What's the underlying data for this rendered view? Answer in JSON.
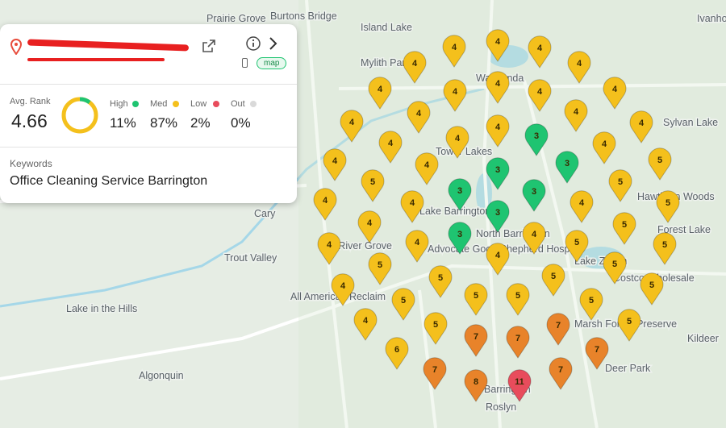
{
  "header": {
    "badge": "map"
  },
  "summary": {
    "avg_rank_label": "Avg. Rank",
    "avg_rank": 4.66,
    "stats": [
      {
        "label": "High",
        "value": "11%",
        "color": "#1fc471"
      },
      {
        "label": "Med",
        "value": "87%",
        "color": "#f4c01c"
      },
      {
        "label": "Low",
        "value": "2%",
        "color": "#e84c5c"
      },
      {
        "label": "Out",
        "value": "0%",
        "color": "#d9d9d9"
      }
    ]
  },
  "keywords": {
    "label": "Keywords",
    "text": "Office Cleaning Service Barrington"
  },
  "places": [
    "Prairie Grove",
    "Burtons Bridge",
    "Island Lake",
    "Mylith Park",
    "Wauconda",
    "Sylvan Lake",
    "Tower Lakes",
    "Cary",
    "Lake Barrington",
    "North Barrington",
    "Hawthorn Woods",
    "Forest Lake",
    "Fox River Grove",
    "Trout Valley",
    "Lake Zurich",
    "All American Reclaim",
    "Lake in the Hills",
    "Algonquin",
    "Roslyn",
    "Barrington",
    "Deer Park",
    "Kildeer",
    "Advocate Good Shepherd Hospital",
    "Costco Wholesale",
    "Ivanhoe",
    "Marsh Forest Preserve"
  ],
  "pins": [
    {
      "rank": 4,
      "color": "#f4c01c"
    },
    {
      "rank": 4,
      "color": "#f4c01c"
    },
    {
      "rank": 4,
      "color": "#f4c01c"
    },
    {
      "rank": 4,
      "color": "#f4c01c"
    },
    {
      "rank": 4,
      "color": "#f4c01c"
    },
    {
      "rank": 4,
      "color": "#f4c01c"
    },
    {
      "rank": 4,
      "color": "#f4c01c"
    },
    {
      "rank": 4,
      "color": "#f4c01c"
    },
    {
      "rank": 4,
      "color": "#f4c01c"
    },
    {
      "rank": 4,
      "color": "#f4c01c"
    },
    {
      "rank": 4,
      "color": "#f4c01c"
    },
    {
      "rank": 4,
      "color": "#f4c01c"
    },
    {
      "rank": 4,
      "color": "#f4c01c"
    },
    {
      "rank": 4,
      "color": "#f4c01c"
    },
    {
      "rank": 4,
      "color": "#f4c01c"
    },
    {
      "rank": 3,
      "color": "#1fc471"
    },
    {
      "rank": 4,
      "color": "#f4c01c"
    },
    {
      "rank": 4,
      "color": "#f4c01c"
    },
    {
      "rank": 4,
      "color": "#f4c01c"
    },
    {
      "rank": 4,
      "color": "#f4c01c"
    },
    {
      "rank": 3,
      "color": "#1fc471"
    },
    {
      "rank": 3,
      "color": "#1fc471"
    },
    {
      "rank": 4,
      "color": "#f4c01c"
    },
    {
      "rank": 5,
      "color": "#f4c01c"
    },
    {
      "rank": 5,
      "color": "#f4c01c"
    },
    {
      "rank": 5,
      "color": "#f4c01c"
    },
    {
      "rank": 3,
      "color": "#1fc471"
    },
    {
      "rank": 3,
      "color": "#1fc471"
    },
    {
      "rank": 4,
      "color": "#f4c01c"
    },
    {
      "rank": 4,
      "color": "#f4c01c"
    },
    {
      "rank": 4,
      "color": "#f4c01c"
    },
    {
      "rank": 5,
      "color": "#f4c01c"
    },
    {
      "rank": 3,
      "color": "#1fc471"
    },
    {
      "rank": 4,
      "color": "#f4c01c"
    },
    {
      "rank": 5,
      "color": "#f4c01c"
    },
    {
      "rank": 3,
      "color": "#1fc471"
    },
    {
      "rank": 4,
      "color": "#f4c01c"
    },
    {
      "rank": 4,
      "color": "#f4c01c"
    },
    {
      "rank": 4,
      "color": "#f4c01c"
    },
    {
      "rank": 5,
      "color": "#f4c01c"
    },
    {
      "rank": 5,
      "color": "#f4c01c"
    },
    {
      "rank": 4,
      "color": "#f4c01c"
    },
    {
      "rank": 5,
      "color": "#f4c01c"
    },
    {
      "rank": 5,
      "color": "#f4c01c"
    },
    {
      "rank": 5,
      "color": "#f4c01c"
    },
    {
      "rank": 5,
      "color": "#f4c01c"
    },
    {
      "rank": 4,
      "color": "#f4c01c"
    },
    {
      "rank": 5,
      "color": "#f4c01c"
    },
    {
      "rank": 5,
      "color": "#f4c01c"
    },
    {
      "rank": 5,
      "color": "#f4c01c"
    },
    {
      "rank": 5,
      "color": "#f4c01c"
    },
    {
      "rank": 5,
      "color": "#f4c01c"
    },
    {
      "rank": 4,
      "color": "#f4c01c"
    },
    {
      "rank": 5,
      "color": "#f4c01c"
    },
    {
      "rank": 5,
      "color": "#f4c01c"
    },
    {
      "rank": 7,
      "color": "#e8832a"
    },
    {
      "rank": 7,
      "color": "#e8832a"
    },
    {
      "rank": 7,
      "color": "#e8832a"
    },
    {
      "rank": 7,
      "color": "#e8832a"
    },
    {
      "rank": 6,
      "color": "#f4c01c"
    },
    {
      "rank": 7,
      "color": "#e8832a"
    },
    {
      "rank": 7,
      "color": "#e8832a"
    },
    {
      "rank": 8,
      "color": "#e8832a"
    },
    {
      "rank": 11,
      "color": "#e84c5c"
    }
  ]
}
